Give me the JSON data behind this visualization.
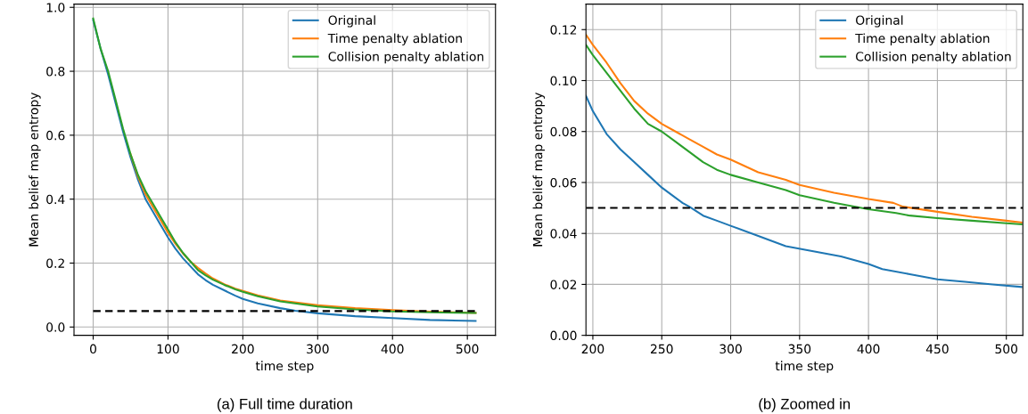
{
  "chart_data": [
    {
      "type": "line",
      "xlabel": "time step",
      "ylabel": "Mean belief map entropy",
      "annotations": [
        "(a) Full time duration"
      ],
      "xlim": [
        -25.6,
        537.6
      ],
      "ylim": [
        -0.026,
        1.01
      ],
      "xticks": [
        0,
        100,
        200,
        300,
        400,
        500
      ],
      "yticks": [
        {
          "value": 0,
          "label": "0.0"
        },
        0.2,
        0.4,
        0.6,
        0.8,
        {
          "value": 1,
          "label": "1.0"
        }
      ],
      "grid": true,
      "legend": "top right",
      "series": [
        {
          "name": "Original",
          "color": "#1f77b4",
          "x": [
            0,
            10,
            20,
            30,
            40,
            50,
            60,
            70,
            80,
            90,
            100,
            110,
            120,
            130,
            140,
            150,
            160,
            175,
            190,
            200,
            220,
            250,
            270,
            300,
            350,
            400,
            450,
            511
          ],
          "values": [
            0.96,
            0.87,
            0.79,
            0.7,
            0.61,
            0.53,
            0.46,
            0.4,
            0.36,
            0.32,
            0.28,
            0.245,
            0.215,
            0.19,
            0.165,
            0.147,
            0.132,
            0.115,
            0.098,
            0.088,
            0.074,
            0.059,
            0.051,
            0.043,
            0.034,
            0.028,
            0.022,
            0.019
          ]
        },
        {
          "name": "Time penalty ablation",
          "color": "#ff7f0e",
          "x": [
            50,
            60,
            70,
            80,
            90,
            100,
            110,
            120,
            130,
            140,
            150,
            160,
            175,
            190,
            200,
            220,
            250,
            300,
            350,
            400,
            450,
            511
          ],
          "values": [
            0.54,
            0.47,
            0.415,
            0.375,
            0.335,
            0.295,
            0.26,
            0.23,
            0.205,
            0.185,
            0.168,
            0.152,
            0.134,
            0.12,
            0.113,
            0.099,
            0.083,
            0.068,
            0.059,
            0.053,
            0.048,
            0.044
          ]
        },
        {
          "name": "Collision penalty ablation",
          "color": "#2ca02c",
          "x": [
            0,
            10,
            20,
            30,
            40,
            50,
            60,
            70,
            80,
            90,
            100,
            110,
            120,
            130,
            140,
            150,
            160,
            175,
            190,
            200,
            220,
            250,
            300,
            350,
            400,
            450,
            511
          ],
          "values": [
            0.965,
            0.87,
            0.8,
            0.71,
            0.62,
            0.54,
            0.475,
            0.425,
            0.385,
            0.345,
            0.305,
            0.265,
            0.232,
            0.205,
            0.178,
            0.162,
            0.148,
            0.132,
            0.118,
            0.11,
            0.096,
            0.08,
            0.064,
            0.055,
            0.049,
            0.046,
            0.044
          ]
        },
        {
          "color": "#000000",
          "line_style": "dashed",
          "x": [
            0,
            511
          ],
          "values": [
            0.05,
            0.05
          ]
        }
      ]
    },
    {
      "type": "line",
      "xlabel": "time step",
      "ylabel": "Mean belief map entropy",
      "annotations": [
        "(b) Zoomed in"
      ],
      "xlim": [
        195,
        512
      ],
      "ylim": [
        0,
        0.13
      ],
      "xticks": [
        200,
        250,
        300,
        350,
        400,
        450,
        500
      ],
      "yticks": [
        {
          "value": 0,
          "label": "0.00"
        },
        {
          "value": 0.02,
          "label": "0.02"
        },
        {
          "value": 0.04,
          "label": "0.04"
        },
        {
          "value": 0.06,
          "label": "0.06"
        },
        {
          "value": 0.08,
          "label": "0.08"
        },
        {
          "value": 0.1,
          "label": "0.10"
        },
        {
          "value": 0.12,
          "label": "0.12"
        }
      ],
      "grid": true,
      "legend": "top right",
      "series": [
        {
          "name": "Original",
          "color": "#1f77b4",
          "x": [
            195,
            200,
            210,
            220,
            230,
            240,
            250,
            260,
            265,
            270,
            280,
            290,
            300,
            320,
            340,
            360,
            380,
            400,
            410,
            430,
            450,
            470,
            490,
            511
          ],
          "values": [
            0.094,
            0.088,
            0.079,
            0.073,
            0.068,
            0.063,
            0.058,
            0.054,
            0.052,
            0.0505,
            0.047,
            0.045,
            0.043,
            0.039,
            0.035,
            0.033,
            0.031,
            0.028,
            0.026,
            0.024,
            0.022,
            0.021,
            0.02,
            0.019
          ]
        },
        {
          "name": "Time penalty ablation",
          "color": "#ff7f0e",
          "x": [
            195,
            200,
            210,
            220,
            230,
            240,
            250,
            260,
            270,
            280,
            290,
            300,
            320,
            340,
            350,
            375,
            400,
            418,
            425,
            450,
            475,
            500,
            511
          ],
          "values": [
            0.118,
            0.114,
            0.107,
            0.099,
            0.092,
            0.087,
            0.083,
            0.08,
            0.077,
            0.074,
            0.071,
            0.069,
            0.064,
            0.061,
            0.059,
            0.056,
            0.0535,
            0.052,
            0.0505,
            0.0485,
            0.0465,
            0.045,
            0.0443
          ]
        },
        {
          "name": "Collision penalty ablation",
          "color": "#2ca02c",
          "x": [
            195,
            200,
            210,
            220,
            230,
            240,
            250,
            260,
            270,
            280,
            290,
            300,
            320,
            340,
            350,
            375,
            400,
            420,
            430,
            450,
            475,
            500,
            511
          ],
          "values": [
            0.114,
            0.11,
            0.103,
            0.096,
            0.089,
            0.083,
            0.08,
            0.076,
            0.072,
            0.068,
            0.065,
            0.063,
            0.06,
            0.057,
            0.055,
            0.052,
            0.0495,
            0.048,
            0.047,
            0.046,
            0.045,
            0.044,
            0.0436
          ]
        },
        {
          "color": "#000000",
          "line_style": "dashed",
          "x": [
            195,
            512
          ],
          "values": [
            0.05,
            0.05
          ]
        }
      ]
    }
  ]
}
